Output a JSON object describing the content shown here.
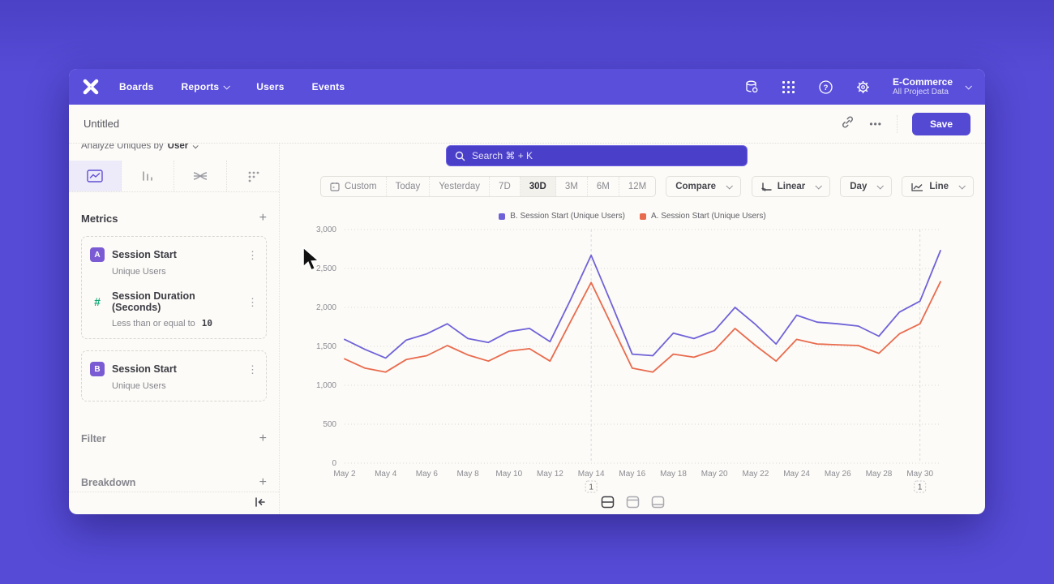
{
  "nav": {
    "items": [
      "Boards",
      "Reports",
      "Users",
      "Events"
    ],
    "search_placeholder": "Search   ⌘ + K",
    "project_name": "E-Commerce",
    "project_scope": "All Project Data"
  },
  "header": {
    "title": "Untitled",
    "more_label": "•••",
    "save_label": "Save"
  },
  "sidebar": {
    "analyze_prefix": "Analyze Uniques by",
    "analyze_value": "User",
    "metrics_title": "Metrics",
    "plus": "+",
    "kebab": "⋮",
    "metrics": [
      {
        "badge": "A",
        "title": "Session Start",
        "subtitle": "Unique Users"
      },
      {
        "badge": "#",
        "title": "Session Duration (Seconds)",
        "subtitle": "Less than or equal to",
        "value": "10"
      },
      {
        "badge": "B",
        "title": "Session Start",
        "subtitle": "Unique Users"
      }
    ],
    "filter_label": "Filter",
    "breakdown_label": "Breakdown"
  },
  "toolbar": {
    "ranges": [
      "Custom",
      "Today",
      "Yesterday",
      "7D",
      "30D",
      "3M",
      "6M",
      "12M"
    ],
    "selected_range": "30D",
    "compare_label": "Compare",
    "linear_label": "Linear",
    "day_label": "Day",
    "line_label": "Line"
  },
  "chart_data": {
    "type": "line",
    "title": "",
    "xlabel": "",
    "ylabel": "",
    "ylim": [
      0,
      3000
    ],
    "ytick_step": 500,
    "grid": true,
    "legend_position": "top-center",
    "x": [
      "May 2",
      "May 3",
      "May 4",
      "May 5",
      "May 6",
      "May 7",
      "May 8",
      "May 9",
      "May 10",
      "May 11",
      "May 12",
      "May 13",
      "May 14",
      "May 15",
      "May 16",
      "May 17",
      "May 18",
      "May 19",
      "May 20",
      "May 21",
      "May 22",
      "May 23",
      "May 24",
      "May 25",
      "May 26",
      "May 27",
      "May 28",
      "May 29",
      "May 30",
      "May 31"
    ],
    "x_tick_every": 2,
    "series": [
      {
        "name": "B. Session Start (Unique Users)",
        "color": "#6f62d8",
        "values": [
          1590,
          1460,
          1350,
          1580,
          1660,
          1790,
          1600,
          1550,
          1690,
          1730,
          1560,
          2100,
          2670,
          2040,
          1400,
          1380,
          1670,
          1600,
          1700,
          2000,
          1780,
          1530,
          1900,
          1810,
          1790,
          1760,
          1630,
          1940,
          2080,
          2730
        ]
      },
      {
        "name": "A. Session Start (Unique Users)",
        "color": "#e96b4e",
        "values": [
          1340,
          1220,
          1170,
          1330,
          1380,
          1510,
          1390,
          1310,
          1440,
          1470,
          1310,
          1820,
          2320,
          1770,
          1220,
          1170,
          1400,
          1360,
          1450,
          1730,
          1510,
          1310,
          1590,
          1530,
          1520,
          1510,
          1410,
          1660,
          1790,
          2330
        ]
      }
    ],
    "annotations": [
      {
        "x_index": 12,
        "x": "May 14",
        "label": "1"
      },
      {
        "x_index": 28,
        "x": "May 30",
        "label": "1"
      }
    ]
  },
  "colors": {
    "accent_purple": "#5449d2",
    "nav_purple": "#5a4fdb",
    "series_b": "#6f62d8",
    "series_a": "#e96b4e",
    "badge_purple": "#7a5bd4",
    "hash_green": "#15a879"
  }
}
